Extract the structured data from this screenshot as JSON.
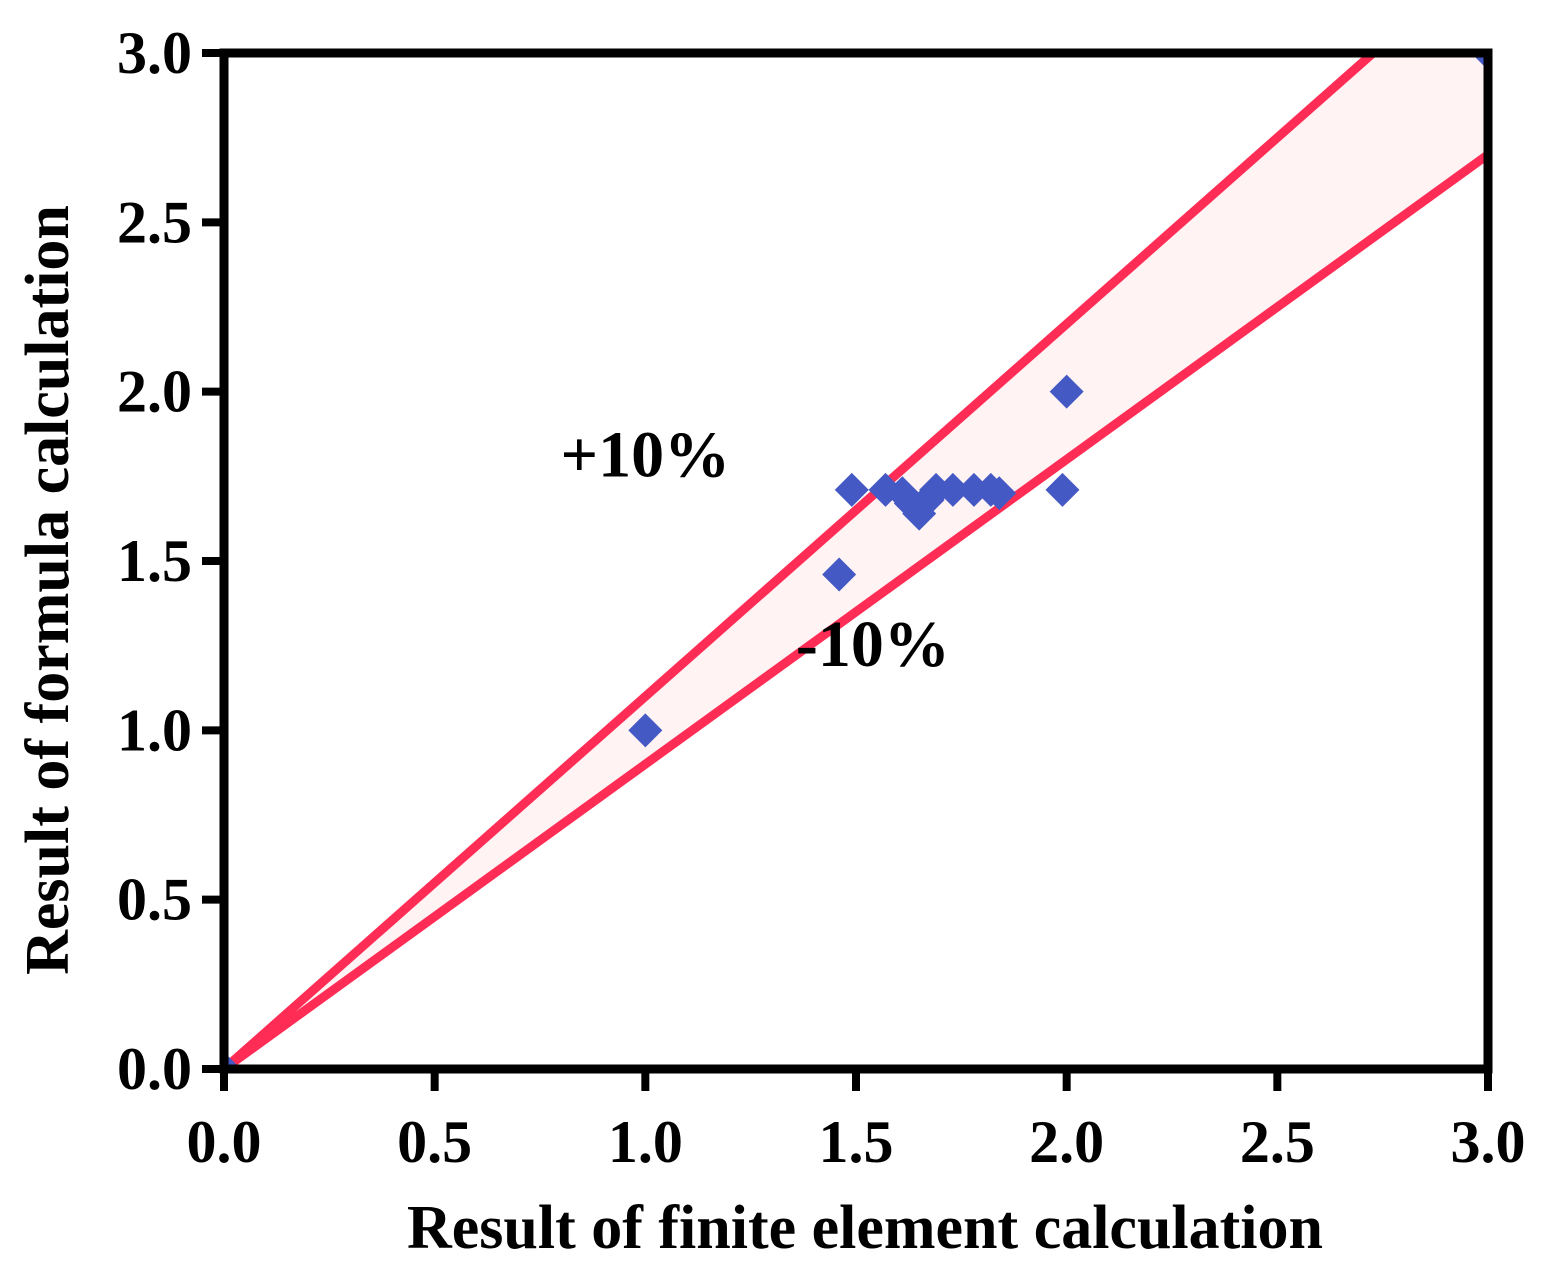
{
  "chart_data": {
    "type": "scatter",
    "title": "",
    "xlabel": "Result of finite element calculation",
    "ylabel": "Result of formula calculation",
    "xlim": [
      0.0,
      3.0
    ],
    "ylim": [
      0.0,
      3.0
    ],
    "xticks": [
      "0.0",
      "0.5",
      "1.0",
      "1.5",
      "2.0",
      "2.5",
      "3.0"
    ],
    "yticks": [
      "0.0",
      "0.5",
      "1.0",
      "1.5",
      "2.0",
      "2.5",
      "3.0"
    ],
    "grid": false,
    "series": [
      {
        "name": "Data points",
        "marker": "diamond",
        "color": "#4459c4",
        "points": [
          [
            0.0,
            0.0
          ],
          [
            1.0,
            1.0
          ],
          [
            1.46,
            1.46
          ],
          [
            1.49,
            1.71
          ],
          [
            1.57,
            1.71
          ],
          [
            1.61,
            1.7
          ],
          [
            1.63,
            1.67
          ],
          [
            1.65,
            1.64
          ],
          [
            1.67,
            1.68
          ],
          [
            1.69,
            1.71
          ],
          [
            1.73,
            1.71
          ],
          [
            1.78,
            1.71
          ],
          [
            1.82,
            1.71
          ],
          [
            1.84,
            1.7
          ],
          [
            1.99,
            1.71
          ],
          [
            2.0,
            2.0
          ],
          [
            3.0,
            3.0
          ]
        ]
      }
    ],
    "bounds": [
      {
        "name": "+10%",
        "slope": 1.1,
        "color": "#ff2d55"
      },
      {
        "name": "-10%",
        "slope": 0.9,
        "color": "#ff2d55"
      }
    ],
    "band_fill": "#fff3f4",
    "annotations": [
      {
        "text": "+10%",
        "x": 1.0,
        "y": 1.75
      },
      {
        "text": "-10%",
        "x": 1.54,
        "y": 1.19
      }
    ]
  }
}
